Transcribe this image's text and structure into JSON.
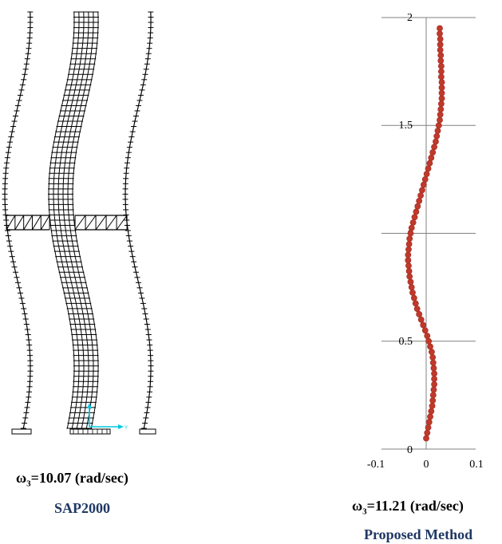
{
  "left_figure": {
    "omega_symbol": "ω",
    "omega_subscript": "3",
    "omega_value_text": "=10.07 (rad/sec)",
    "method_label": "SAP2000",
    "axis_glyph": "Y"
  },
  "right_figure": {
    "omega_symbol": "ω",
    "omega_subscript": "3",
    "omega_value_text": "=11.21 (rad/sec)",
    "method_label": "Proposed Method"
  },
  "colors": {
    "mode_shape": "#c0392b",
    "grid": "#808080",
    "method_text": "#1f3864",
    "frame": "#000000",
    "local_axis": "#00c8e0"
  },
  "chart_data": {
    "type": "scatter",
    "title": "",
    "xlabel": "",
    "ylabel": "",
    "xlim": [
      -0.1,
      0.1
    ],
    "ylim": [
      0,
      2
    ],
    "x_ticks": [
      "-0.1",
      "0",
      "0.1"
    ],
    "y_ticks": [
      "0",
      "0.5",
      "1",
      "1.5",
      "2"
    ],
    "grid": true,
    "series": [
      {
        "points": [
          {
            "x": 0.0,
            "y": 0.05
          },
          {
            "x": 0.002,
            "y": 0.075
          },
          {
            "x": 0.004,
            "y": 0.1
          },
          {
            "x": 0.006,
            "y": 0.125
          },
          {
            "x": 0.008,
            "y": 0.15
          },
          {
            "x": 0.01,
            "y": 0.175
          },
          {
            "x": 0.012,
            "y": 0.2
          },
          {
            "x": 0.013,
            "y": 0.225
          },
          {
            "x": 0.014,
            "y": 0.25
          },
          {
            "x": 0.015,
            "y": 0.275
          },
          {
            "x": 0.016,
            "y": 0.3
          },
          {
            "x": 0.016,
            "y": 0.325
          },
          {
            "x": 0.016,
            "y": 0.35
          },
          {
            "x": 0.015,
            "y": 0.375
          },
          {
            "x": 0.014,
            "y": 0.4
          },
          {
            "x": 0.013,
            "y": 0.425
          },
          {
            "x": 0.011,
            "y": 0.45
          },
          {
            "x": 0.008,
            "y": 0.475
          },
          {
            "x": 0.005,
            "y": 0.5
          },
          {
            "x": 0.002,
            "y": 0.525
          },
          {
            "x": -0.002,
            "y": 0.55
          },
          {
            "x": -0.006,
            "y": 0.575
          },
          {
            "x": -0.01,
            "y": 0.6
          },
          {
            "x": -0.014,
            "y": 0.625
          },
          {
            "x": -0.018,
            "y": 0.65
          },
          {
            "x": -0.021,
            "y": 0.675
          },
          {
            "x": -0.024,
            "y": 0.7
          },
          {
            "x": -0.027,
            "y": 0.725
          },
          {
            "x": -0.029,
            "y": 0.75
          },
          {
            "x": -0.031,
            "y": 0.775
          },
          {
            "x": -0.033,
            "y": 0.8
          },
          {
            "x": -0.034,
            "y": 0.825
          },
          {
            "x": -0.035,
            "y": 0.85
          },
          {
            "x": -0.036,
            "y": 0.875
          },
          {
            "x": -0.036,
            "y": 0.9
          },
          {
            "x": -0.035,
            "y": 0.925
          },
          {
            "x": -0.034,
            "y": 0.95
          },
          {
            "x": -0.033,
            "y": 0.975
          },
          {
            "x": -0.031,
            "y": 1.0
          },
          {
            "x": -0.029,
            "y": 1.025
          },
          {
            "x": -0.026,
            "y": 1.05
          },
          {
            "x": -0.023,
            "y": 1.075
          },
          {
            "x": -0.02,
            "y": 1.1
          },
          {
            "x": -0.017,
            "y": 1.125
          },
          {
            "x": -0.014,
            "y": 1.15
          },
          {
            "x": -0.011,
            "y": 1.175
          },
          {
            "x": -0.008,
            "y": 1.2
          },
          {
            "x": -0.005,
            "y": 1.225
          },
          {
            "x": -0.002,
            "y": 1.25
          },
          {
            "x": 0.001,
            "y": 1.275
          },
          {
            "x": 0.004,
            "y": 1.3
          },
          {
            "x": 0.007,
            "y": 1.325
          },
          {
            "x": 0.01,
            "y": 1.35
          },
          {
            "x": 0.013,
            "y": 1.375
          },
          {
            "x": 0.016,
            "y": 1.4
          },
          {
            "x": 0.019,
            "y": 1.425
          },
          {
            "x": 0.021,
            "y": 1.45
          },
          {
            "x": 0.023,
            "y": 1.475
          },
          {
            "x": 0.025,
            "y": 1.5
          },
          {
            "x": 0.027,
            "y": 1.525
          },
          {
            "x": 0.028,
            "y": 1.55
          },
          {
            "x": 0.029,
            "y": 1.575
          },
          {
            "x": 0.03,
            "y": 1.6
          },
          {
            "x": 0.031,
            "y": 1.625
          },
          {
            "x": 0.031,
            "y": 1.65
          },
          {
            "x": 0.031,
            "y": 1.675
          },
          {
            "x": 0.031,
            "y": 1.7
          },
          {
            "x": 0.03,
            "y": 1.725
          },
          {
            "x": 0.03,
            "y": 1.75
          },
          {
            "x": 0.03,
            "y": 1.775
          },
          {
            "x": 0.029,
            "y": 1.8
          },
          {
            "x": 0.029,
            "y": 1.825
          },
          {
            "x": 0.028,
            "y": 1.85
          },
          {
            "x": 0.028,
            "y": 1.875
          },
          {
            "x": 0.028,
            "y": 1.9
          },
          {
            "x": 0.027,
            "y": 1.925
          },
          {
            "x": 0.027,
            "y": 1.95
          }
        ]
      }
    ]
  }
}
